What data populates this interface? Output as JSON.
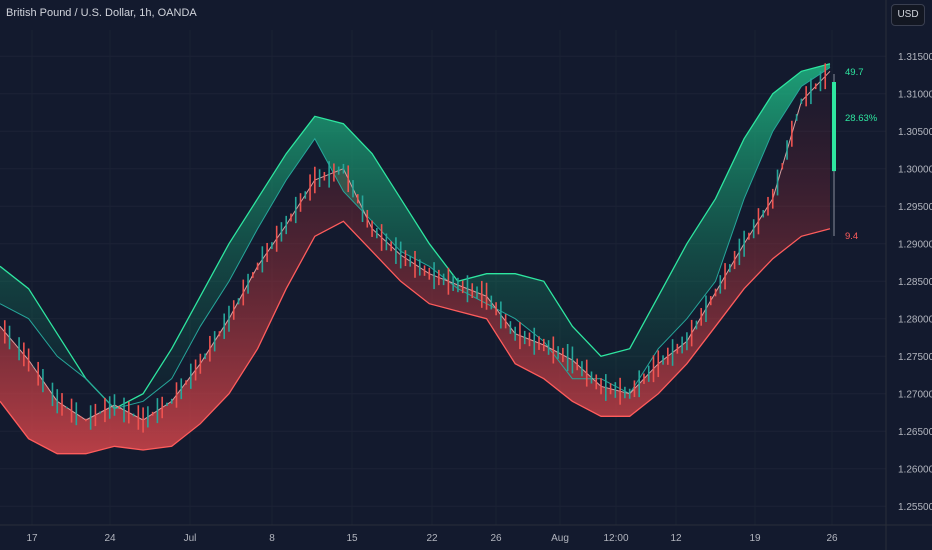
{
  "header": {
    "title": "British Pound / U.S. Dollar, 1h, OANDA",
    "currency_button": "USD"
  },
  "colors": {
    "background": "#131a2e",
    "up": "#26a69a",
    "down": "#ef5350",
    "upper_band": "#2ee6a0",
    "lower_band": "#ff5c5c",
    "meter_fill": "#2ee6a0"
  },
  "chart_data": {
    "type": "line",
    "title": "British Pound / U.S. Dollar, 1h, OANDA",
    "y_ticks": [
      "1.31500",
      "1.31000",
      "1.30500",
      "1.30000",
      "1.29500",
      "1.29000",
      "1.28500",
      "1.28000",
      "1.27500",
      "1.27000",
      "1.26500",
      "1.26000",
      "1.25500"
    ],
    "x_ticks": [
      "17",
      "24",
      "Jul",
      "8",
      "15",
      "22",
      "26",
      "Aug",
      "12:00",
      "12",
      "19",
      "26"
    ],
    "ylim": [
      1.2525,
      1.3185
    ],
    "x": [
      "Jun 13",
      "Jun 17",
      "Jun 20",
      "Jun 24",
      "Jun 27",
      "Jul 1",
      "Jul 3",
      "Jul 6",
      "Jul 8",
      "Jul 11",
      "Jul 15",
      "Jul 18",
      "Jul 20",
      "Jul 22",
      "Jul 24",
      "Jul 26",
      "Jul 29",
      "Aug 1",
      "Aug 2",
      "Aug 3",
      "Aug 5",
      "Aug 7",
      "Aug 9",
      "Aug 12",
      "Aug 14",
      "Aug 17",
      "Aug 19",
      "Aug 22",
      "Aug 24",
      "Aug 26"
    ],
    "series": [
      {
        "values": [
          1.279,
          1.2745,
          1.269,
          1.2665,
          1.2685,
          1.2665,
          1.269,
          1.274,
          1.28,
          1.287,
          1.2925,
          1.2985,
          1.3,
          1.292,
          1.2885,
          1.286,
          1.2845,
          1.283,
          1.278,
          1.2765,
          1.2745,
          1.271,
          1.27,
          1.274,
          1.277,
          1.2835,
          1.29,
          1.296,
          1.309,
          1.313
        ]
      },
      {
        "values": [
          1.282,
          1.28,
          1.275,
          1.272,
          1.268,
          1.269,
          1.272,
          1.279,
          1.285,
          1.292,
          1.2985,
          1.304,
          1.297,
          1.293,
          1.289,
          1.287,
          1.284,
          1.282,
          1.28,
          1.277,
          1.272,
          1.272,
          1.27,
          1.276,
          1.28,
          1.285,
          1.296,
          1.305,
          1.311,
          1.3135
        ]
      },
      {
        "values": [
          1.287,
          1.284,
          1.278,
          1.272,
          1.268,
          1.27,
          1.276,
          1.283,
          1.29,
          1.296,
          1.302,
          1.307,
          1.306,
          1.302,
          1.296,
          1.29,
          1.285,
          1.286,
          1.286,
          1.285,
          1.279,
          1.275,
          1.276,
          1.283,
          1.29,
          1.296,
          1.304,
          1.31,
          1.313,
          1.314
        ]
      },
      {
        "values": [
          1.269,
          1.264,
          1.262,
          1.262,
          1.263,
          1.2625,
          1.263,
          1.266,
          1.27,
          1.276,
          1.284,
          1.291,
          1.293,
          1.289,
          1.285,
          1.282,
          1.281,
          1.28,
          1.274,
          1.272,
          1.269,
          1.267,
          1.267,
          1.27,
          1.274,
          1.279,
          1.284,
          1.288,
          1.291,
          1.292
        ]
      }
    ],
    "annotations": {
      "top_value": "49.7",
      "percent": "28.63%",
      "bottom_value": "9.4",
      "meter_fraction": 0.2863
    }
  }
}
